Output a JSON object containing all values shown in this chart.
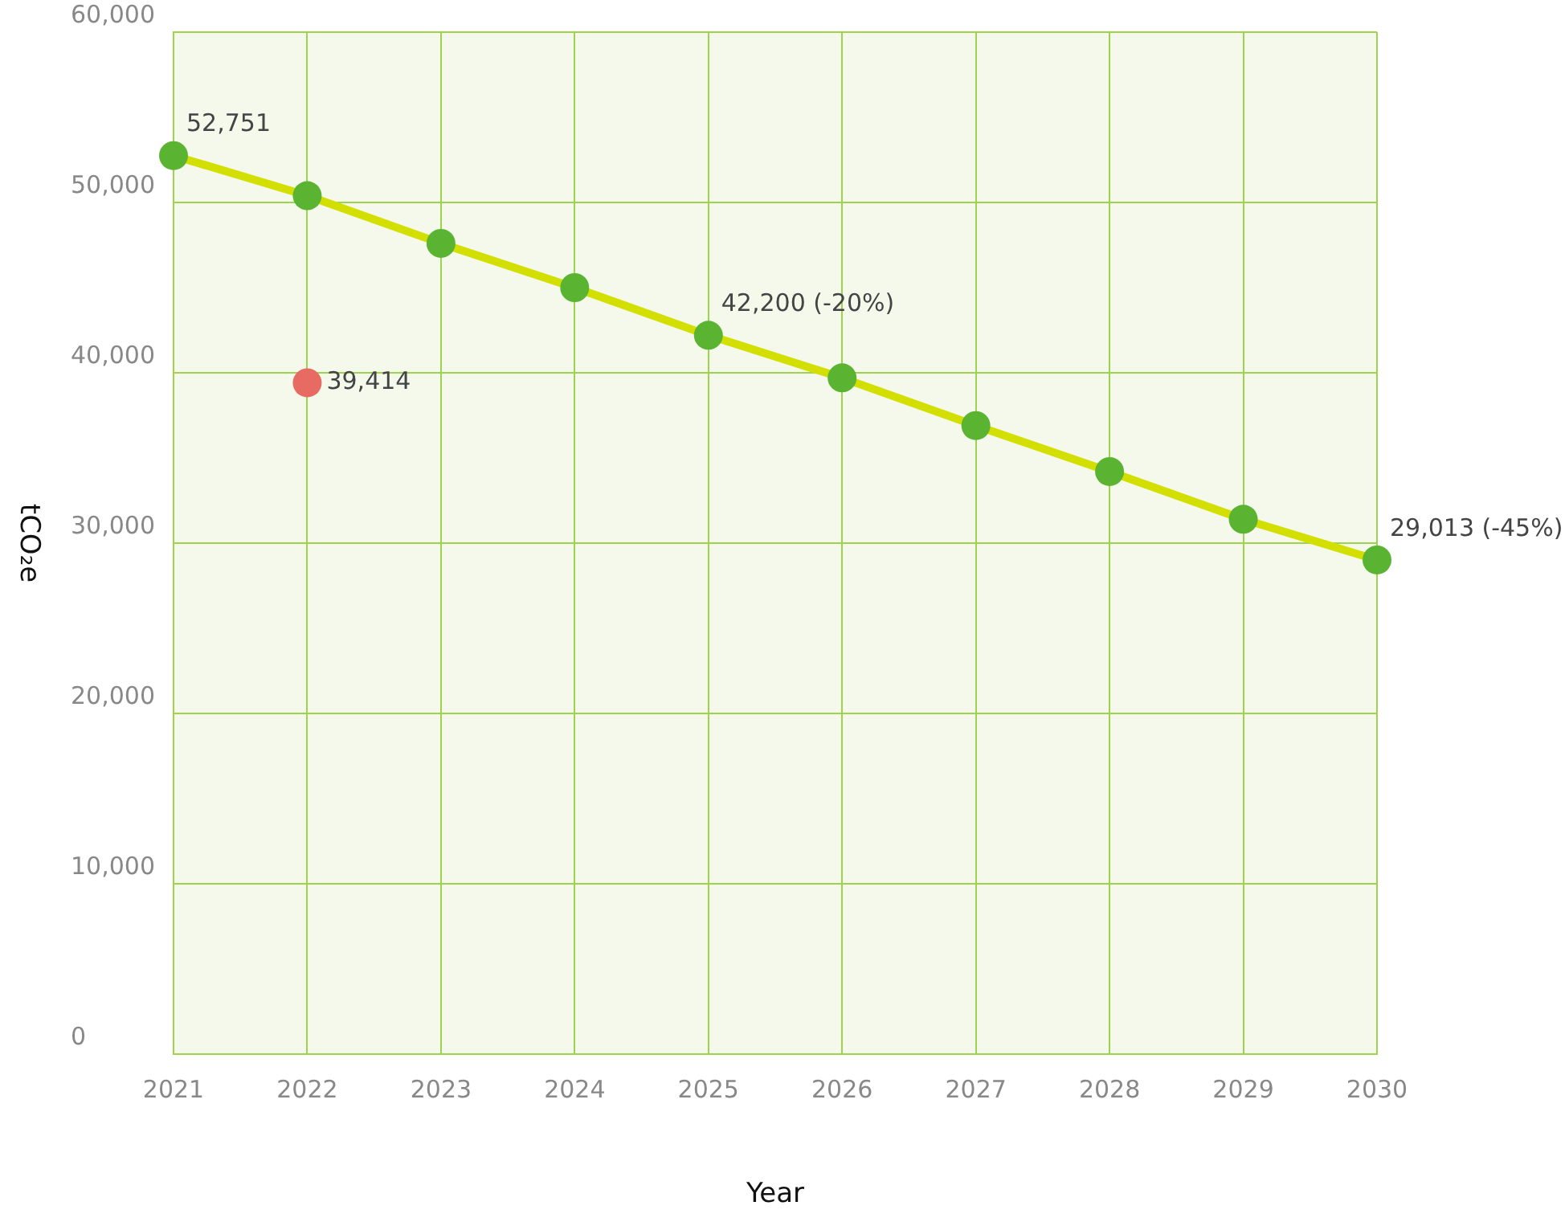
{
  "chart_data": {
    "type": "line",
    "xlabel": "Year",
    "ylabel": "tCO₂e",
    "categories": [
      "2021",
      "2022",
      "2023",
      "2024",
      "2025",
      "2026",
      "2027",
      "2028",
      "2029",
      "2030"
    ],
    "ylim": [
      0,
      60000
    ],
    "yticks": [
      {
        "value": 0,
        "label": "0"
      },
      {
        "value": 10000,
        "label": "10,000"
      },
      {
        "value": 20000,
        "label": "20,000"
      },
      {
        "value": 30000,
        "label": "30,000"
      },
      {
        "value": 40000,
        "label": "40,000"
      },
      {
        "value": 50000,
        "label": "50,000"
      },
      {
        "value": 60000,
        "label": "60,000"
      }
    ],
    "grid": true,
    "legend": false,
    "marker": "circle",
    "line_style": "solid",
    "series": [
      {
        "type": "line",
        "color": "#d3df00",
        "colors": [
          "#5ab432",
          "#5ab432",
          "#5ab432",
          "#5ab432",
          "#5ab432",
          "#5ab432",
          "#5ab432",
          "#5ab432",
          "#5ab432",
          "#5ab432"
        ],
        "values": [
          52751,
          50400,
          47600,
          45000,
          42200,
          39700,
          36900,
          34200,
          31400,
          29013
        ],
        "value_labels": [
          "52,751",
          null,
          null,
          null,
          "42,200 (-20%)",
          null,
          null,
          null,
          null,
          "29,013 (-45%)"
        ]
      },
      {
        "type": "scatter",
        "color": "#e86b63",
        "values": [
          null,
          39414,
          null,
          null,
          null,
          null,
          null,
          null,
          null,
          null
        ],
        "value_labels": [
          null,
          "39,414",
          null,
          null,
          null,
          null,
          null,
          null,
          null,
          null
        ]
      }
    ]
  }
}
